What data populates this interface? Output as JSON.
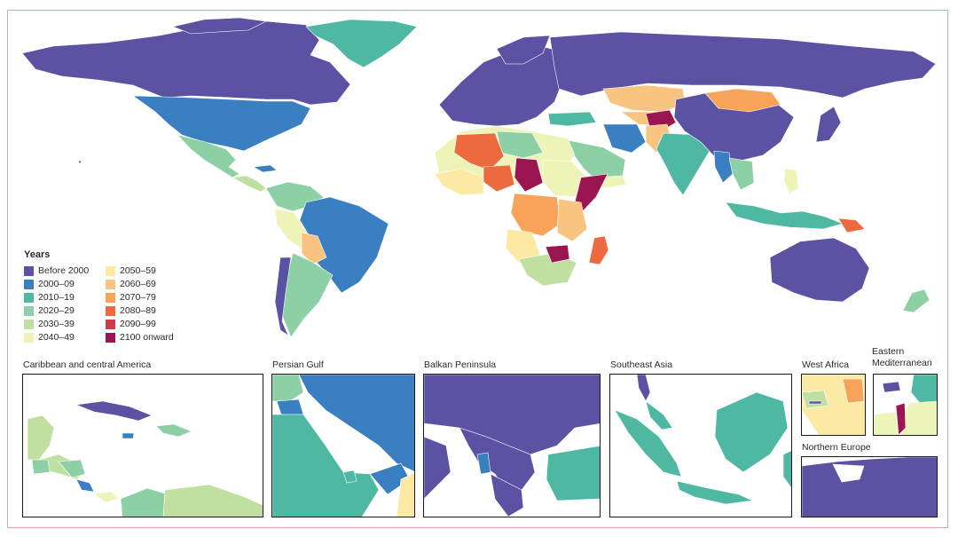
{
  "colors": {
    "before_2000": "#5b52a3",
    "2000_09": "#3a7fc1",
    "2010_19": "#4eb8a3",
    "2020_29": "#8dd0a6",
    "2030_39": "#bfe0a0",
    "2040_49": "#eef3b7",
    "2050_59": "#fbe9a4",
    "2060_69": "#f9c47f",
    "2070_79": "#f7a35a",
    "2080_89": "#ec6a3e",
    "2090_99": "#cf3d4a",
    "2100_onward": "#9b1650"
  },
  "legend": {
    "title": "Years",
    "items": [
      {
        "label": "Before 2000",
        "color": "#5b52a3"
      },
      {
        "label": "2050–59",
        "color": "#fbe9a4"
      },
      {
        "label": "2000–09",
        "color": "#3a7fc1"
      },
      {
        "label": "2060–69",
        "color": "#f9c47f"
      },
      {
        "label": "2010–19",
        "color": "#4eb8a3"
      },
      {
        "label": "2070–79",
        "color": "#f7a35a"
      },
      {
        "label": "2020–29",
        "color": "#8dd0a6"
      },
      {
        "label": "2080–89",
        "color": "#ec6a3e"
      },
      {
        "label": "2030–39",
        "color": "#bfe0a0"
      },
      {
        "label": "2090–99",
        "color": "#cf3d4a"
      },
      {
        "label": "2040–49",
        "color": "#eef3b7"
      },
      {
        "label": "2100 onward",
        "color": "#9b1650"
      }
    ]
  },
  "insets": {
    "caribbean": "Caribbean and central America",
    "persian_gulf": "Persian Gulf",
    "balkan": "Balkan Peninsula",
    "southeast_asia": "Southeast Asia",
    "west_africa": "West Africa",
    "eastern_med": "Eastern Mediterranean",
    "northern_europe": "Northern Europe"
  }
}
